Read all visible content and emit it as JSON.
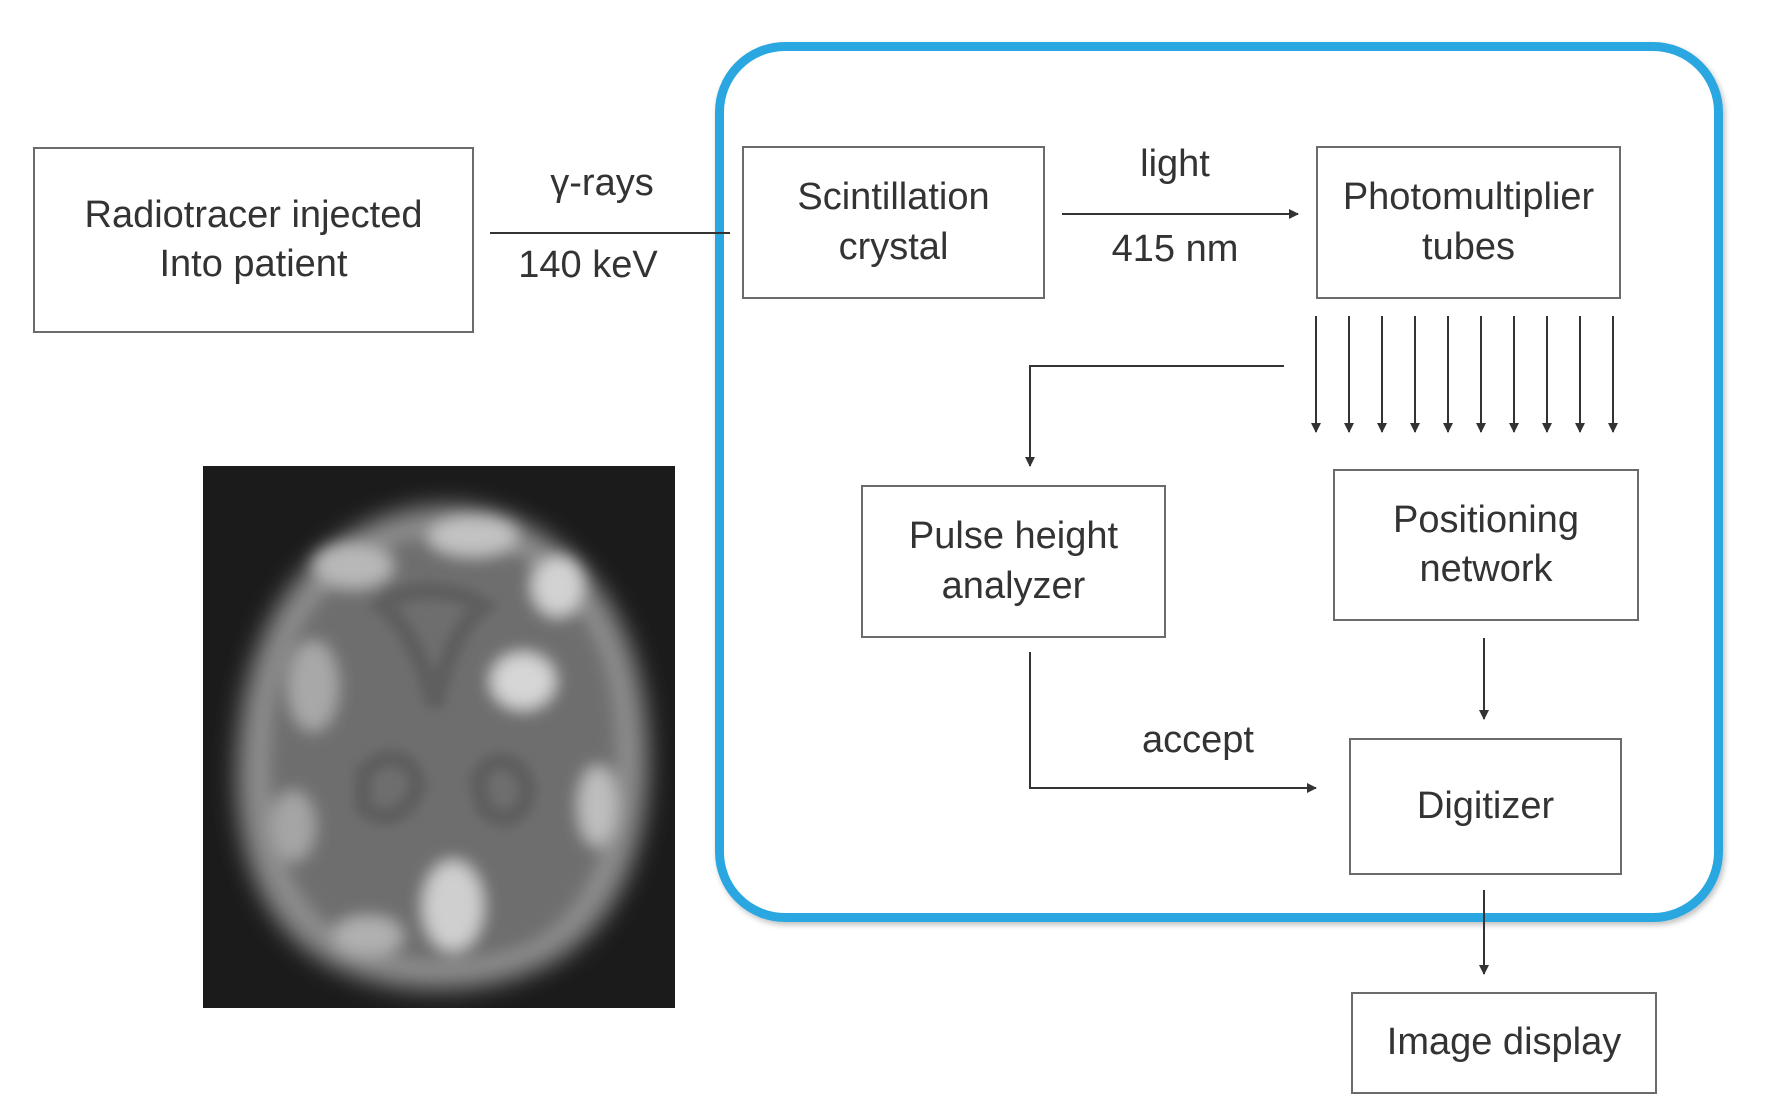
{
  "diagram": {
    "nodes": {
      "radiotracer": {
        "line1": "Radiotracer injected",
        "line2": "Into patient"
      },
      "scintillation": {
        "line1": "Scintillation",
        "line2": "crystal"
      },
      "photomultiplier": {
        "line1": "Photomultiplier",
        "line2": "tubes"
      },
      "pulse_height": {
        "line1": "Pulse height",
        "line2": "analyzer"
      },
      "positioning": {
        "line1": "Positioning",
        "line2": "network"
      },
      "digitizer": {
        "line1": "Digitizer"
      },
      "image_display": {
        "line1": "Image display"
      }
    },
    "edge_labels": {
      "gamma_top": "γ-rays",
      "gamma_bottom": "140 keV",
      "light_top": "light",
      "light_bottom": "415 nm",
      "accept": "accept"
    },
    "colors": {
      "frame": "#2aa7e0",
      "line": "#333333",
      "box_border": "#6b6b6b"
    }
  }
}
